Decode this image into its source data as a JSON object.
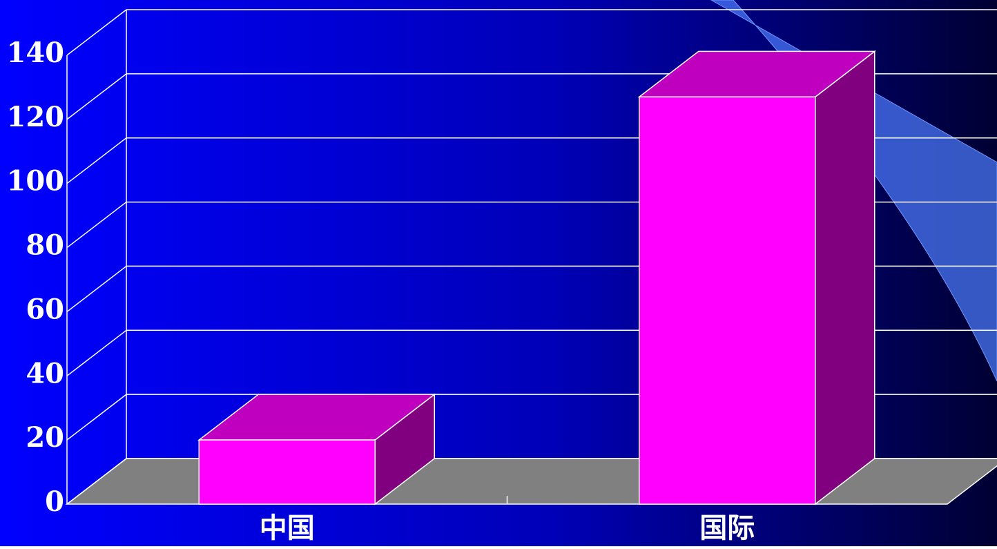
{
  "chart_data": {
    "type": "bar3d",
    "categories": [
      "中国",
      "国际"
    ],
    "values": [
      20,
      127
    ],
    "color": "#ff00ff",
    "ylim": [
      0,
      140
    ],
    "yticks": [
      0,
      20,
      40,
      60,
      80,
      100,
      120,
      140
    ],
    "grid": true
  }
}
